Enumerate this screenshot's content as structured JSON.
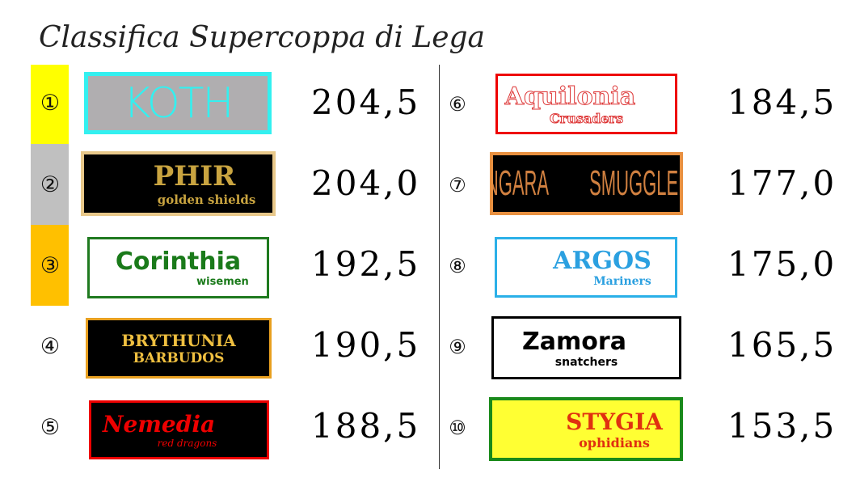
{
  "title": "Classifica Supercoppa di Lega",
  "colors": {
    "first": "#ffff00",
    "second": "#c0c0c0",
    "third": "#ffc000"
  },
  "teams": [
    {
      "rank": "①",
      "name": "KOTH",
      "subtitle": "",
      "score": "204,5"
    },
    {
      "rank": "②",
      "name": "PHIR",
      "subtitle": "golden shields",
      "score": "204,0"
    },
    {
      "rank": "③",
      "name": "Corinthia",
      "subtitle": "wisemen",
      "score": "192,5"
    },
    {
      "rank": "④",
      "name": "BRYTHUNIA",
      "subtitle": "BARBUDOS",
      "score": "190,5"
    },
    {
      "rank": "⑤",
      "name": "Nemedia",
      "subtitle": "red dragons",
      "score": "188,5"
    },
    {
      "rank": "⑥",
      "name": "Aquilonia",
      "subtitle": "Crusaders",
      "score": "184,5"
    },
    {
      "rank": "⑦",
      "name": "ZINGARA",
      "subtitle": "SMUGGLERS",
      "score": "177,0"
    },
    {
      "rank": "⑧",
      "name": "ARGOS",
      "subtitle": "Mariners",
      "score": "175,0"
    },
    {
      "rank": "⑨",
      "name": "Zamora",
      "subtitle": "snatchers",
      "score": "165,5"
    },
    {
      "rank": "⑩",
      "name": "STYGIA",
      "subtitle": "ophidians",
      "score": "153,5"
    }
  ]
}
